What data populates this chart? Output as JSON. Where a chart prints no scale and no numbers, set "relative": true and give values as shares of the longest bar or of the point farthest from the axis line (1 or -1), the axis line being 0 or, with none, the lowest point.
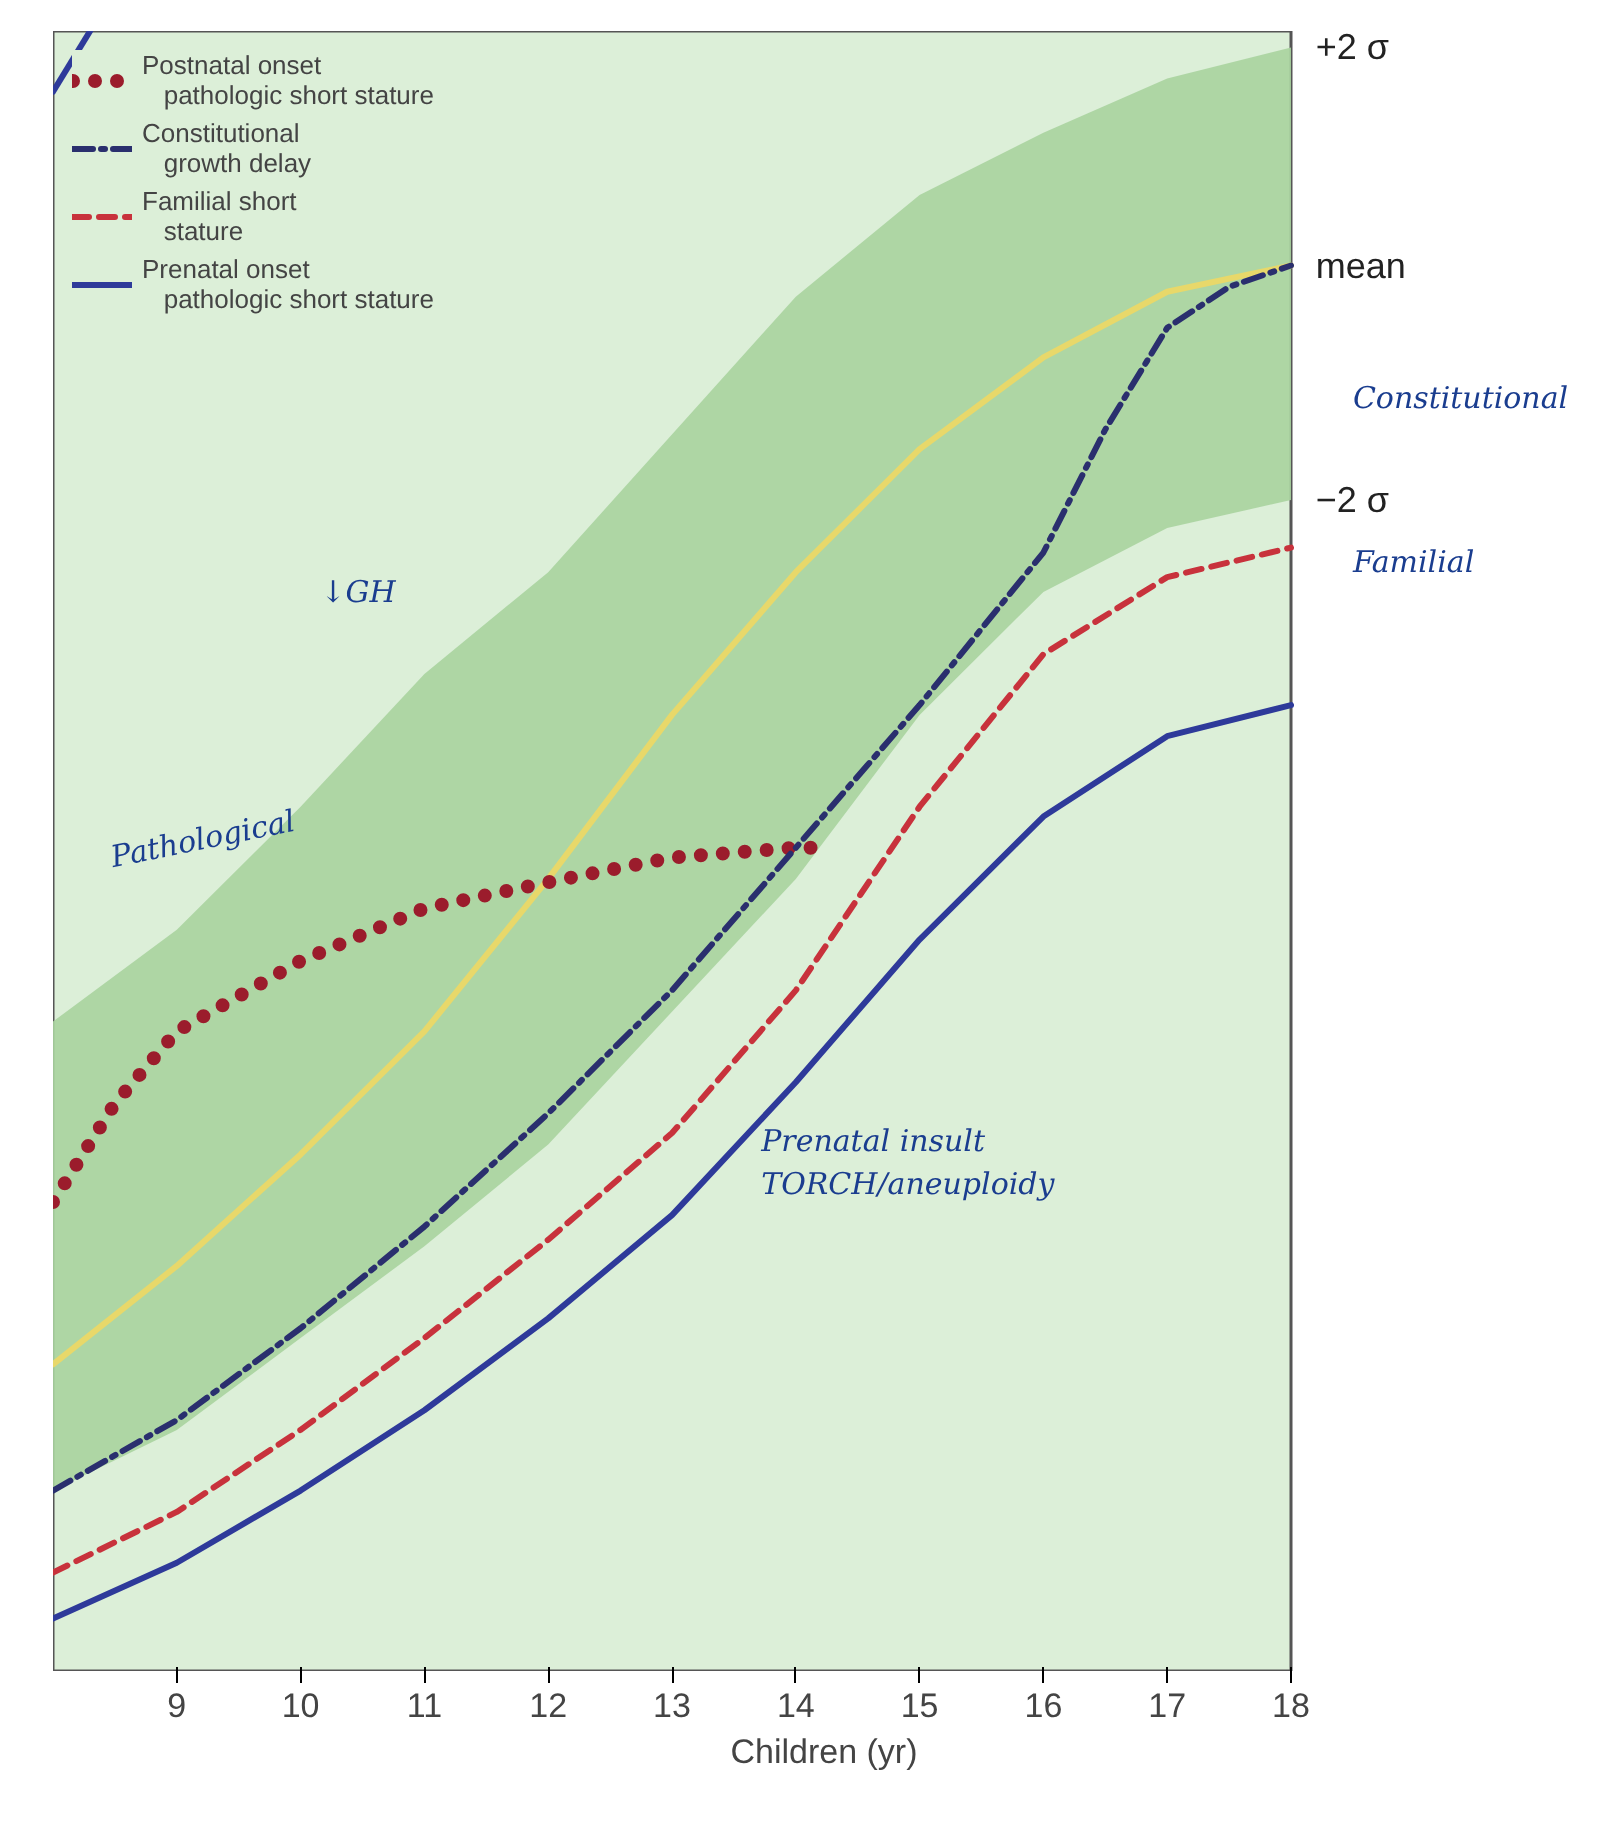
{
  "chart_data": {
    "type": "line",
    "relative": true,
    "xlabel": "Children (yr)",
    "xlim": [
      8,
      18
    ],
    "xticks": [
      9,
      10,
      11,
      12,
      13,
      14,
      15,
      16,
      17,
      18
    ],
    "grid": false,
    "legend": "top left",
    "x": [
      8,
      9,
      10,
      11,
      12,
      13,
      14,
      15,
      16,
      17,
      18
    ],
    "series": [
      {
        "color": "#e8d86a",
        "line_style": "solid",
        "values": [
          0.187,
          0.247,
          0.315,
          0.39,
          0.483,
          0.583,
          0.67,
          0.745,
          0.801,
          0.841,
          0.857
        ],
        "lower": [
          0.11,
          0.147,
          0.203,
          0.259,
          0.321,
          null,
          0.483,
          0.583,
          0.658,
          0.697,
          0.714
        ],
        "upper": [
          0.396,
          0.452,
          0.527,
          0.608,
          0.67,
          null,
          0.838,
          0.9,
          0.938,
          0.971,
          0.99
        ]
      },
      {
        "name": "Postnatal onset pathologic short stature",
        "color": "#9b1c2c",
        "line_style": "dotted",
        "x": [
          8,
          8.5,
          9,
          10,
          11,
          12,
          13,
          14,
          14.2
        ],
        "values": [
          0.286,
          0.346,
          0.39,
          0.433,
          0.465,
          0.481,
          0.496,
          0.502,
          0.502
        ]
      },
      {
        "name": "Constitutional growth delay",
        "color": "#2a2f6e",
        "line_style": "dashdot",
        "x": [
          8,
          9,
          10,
          11,
          12,
          13,
          14,
          15,
          16,
          16.5,
          17,
          17.5,
          18
        ],
        "values": [
          0.11,
          0.153,
          0.209,
          0.271,
          0.34,
          0.415,
          0.502,
          0.589,
          0.682,
          0.757,
          0.819,
          0.844,
          0.857
        ]
      },
      {
        "name": "Familial short stature",
        "color": "#c8323c",
        "line_style": "dashed",
        "values": [
          0.06,
          0.097,
          0.147,
          0.203,
          0.263,
          0.328,
          0.415,
          0.527,
          0.62,
          0.667,
          0.685
        ]
      },
      {
        "name": "Prenatal onset pathologic short stature",
        "color": "#2e3a9a",
        "line_style": "solid",
        "values": [
          0.032,
          0.066,
          0.11,
          0.159,
          0.215,
          0.278,
          0.359,
          0.446,
          0.521,
          0.57,
          0.589
        ]
      },
      {
        "color": "#2e3a9a",
        "line_style": "solid",
        "x": [
          8,
          8.3
        ],
        "values": [
          0.963,
          1.0
        ]
      }
    ],
    "annotations": [
      "+2 σ",
      "mean",
      "−2 σ",
      "Constitutional",
      "Familial",
      "↓GH",
      "Pathological",
      "Prenatal insult TORCH/aneuploidy"
    ]
  }
}
